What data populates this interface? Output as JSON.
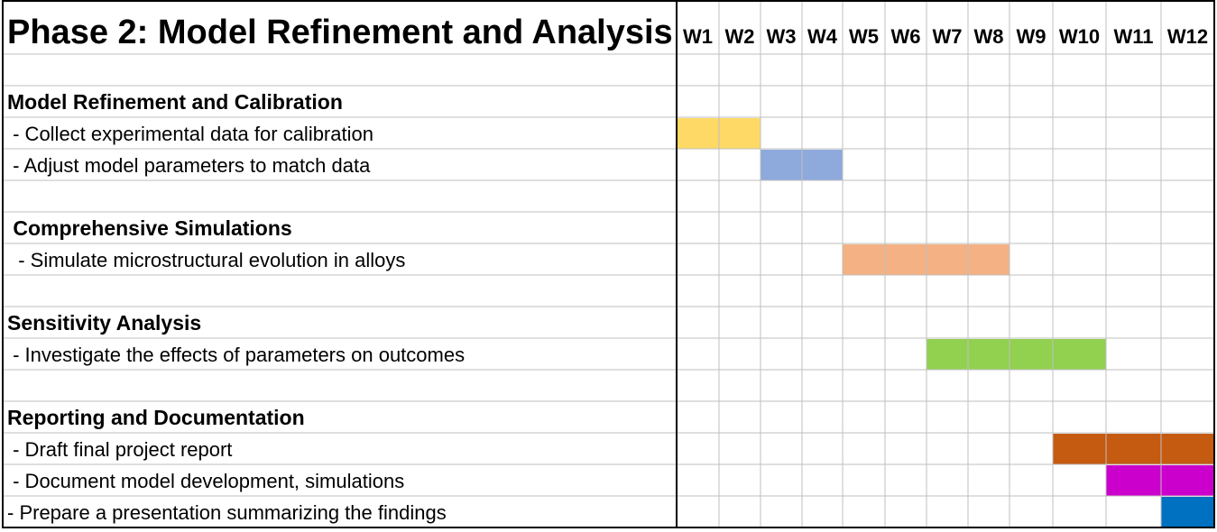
{
  "chart_data": {
    "type": "gantt",
    "title": "Phase 2: Model Refinement and Analysis",
    "weeks": [
      "W1",
      "W2",
      "W3",
      "W4",
      "W5",
      "W6",
      "W7",
      "W8",
      "W9",
      "W10",
      "W11",
      "W12"
    ],
    "rows": [
      {
        "kind": "blank"
      },
      {
        "kind": "section",
        "label": "Model Refinement and Calibration"
      },
      {
        "kind": "task",
        "label": " - Collect experimental data for calibration",
        "start": 1,
        "end": 2,
        "color": "#FFD966"
      },
      {
        "kind": "task",
        "label": " - Adjust model parameters to match data",
        "start": 3,
        "end": 4,
        "color": "#8EA9DB"
      },
      {
        "kind": "blank"
      },
      {
        "kind": "section",
        "label": " Comprehensive Simulations"
      },
      {
        "kind": "task",
        "label": "  - Simulate microstructural evolution in alloys",
        "start": 5,
        "end": 8,
        "color": "#F4B183"
      },
      {
        "kind": "blank"
      },
      {
        "kind": "section",
        "label": "Sensitivity Analysis"
      },
      {
        "kind": "task",
        "label": " - Investigate the effects of parameters on outcomes",
        "start": 7,
        "end": 10,
        "color": "#92D050"
      },
      {
        "kind": "blank"
      },
      {
        "kind": "section",
        "label": "Reporting and Documentation"
      },
      {
        "kind": "task",
        "label": " - Draft final project report",
        "start": 10,
        "end": 12,
        "color": "#C55A11"
      },
      {
        "kind": "task",
        "label": " - Document model development, simulations",
        "start": 11,
        "end": 12,
        "color": "#CC00CC"
      },
      {
        "kind": "task",
        "label": "- Prepare a presentation summarizing the findings",
        "start": 12,
        "end": 12,
        "color": "#0070C0"
      }
    ]
  }
}
